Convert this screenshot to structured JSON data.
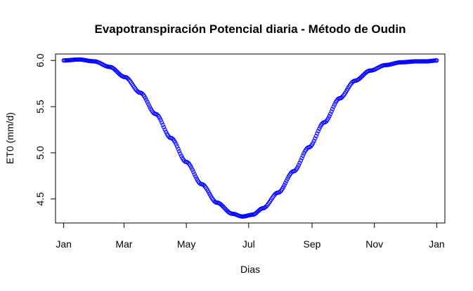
{
  "chart_data": {
    "type": "scatter",
    "title": "Evapotranspiración Potencial diaria - Método de Oudin",
    "xlabel": "Dias",
    "ylabel": "ET0 (mm/d)",
    "x_tick_labels": [
      "Jan",
      "Mar",
      "May",
      "Jul",
      "Sep",
      "Nov",
      "Jan"
    ],
    "x_tick_days": [
      0,
      59,
      120,
      181,
      243,
      304,
      365
    ],
    "y_ticks": [
      4.5,
      5.0,
      5.5,
      6.0
    ],
    "y_tick_labels": [
      "4.5",
      "5.0",
      "5.5",
      "6.0"
    ],
    "xlim": [
      -8,
      373
    ],
    "ylim": [
      4.24,
      6.07
    ],
    "marker": "open-circle",
    "series": [
      {
        "color": "#0000ff",
        "x": [
          0,
          15,
          30,
          45,
          60,
          75,
          90,
          105,
          120,
          135,
          150,
          165,
          175,
          185,
          195,
          210,
          225,
          240,
          255,
          270,
          285,
          300,
          315,
          330,
          345,
          355,
          365
        ],
        "values": [
          6.0,
          6.01,
          5.99,
          5.93,
          5.82,
          5.65,
          5.42,
          5.16,
          4.9,
          4.66,
          4.46,
          4.34,
          4.31,
          4.33,
          4.4,
          4.57,
          4.8,
          5.06,
          5.33,
          5.59,
          5.78,
          5.89,
          5.95,
          5.98,
          5.99,
          5.99,
          6.0
        ]
      }
    ]
  }
}
